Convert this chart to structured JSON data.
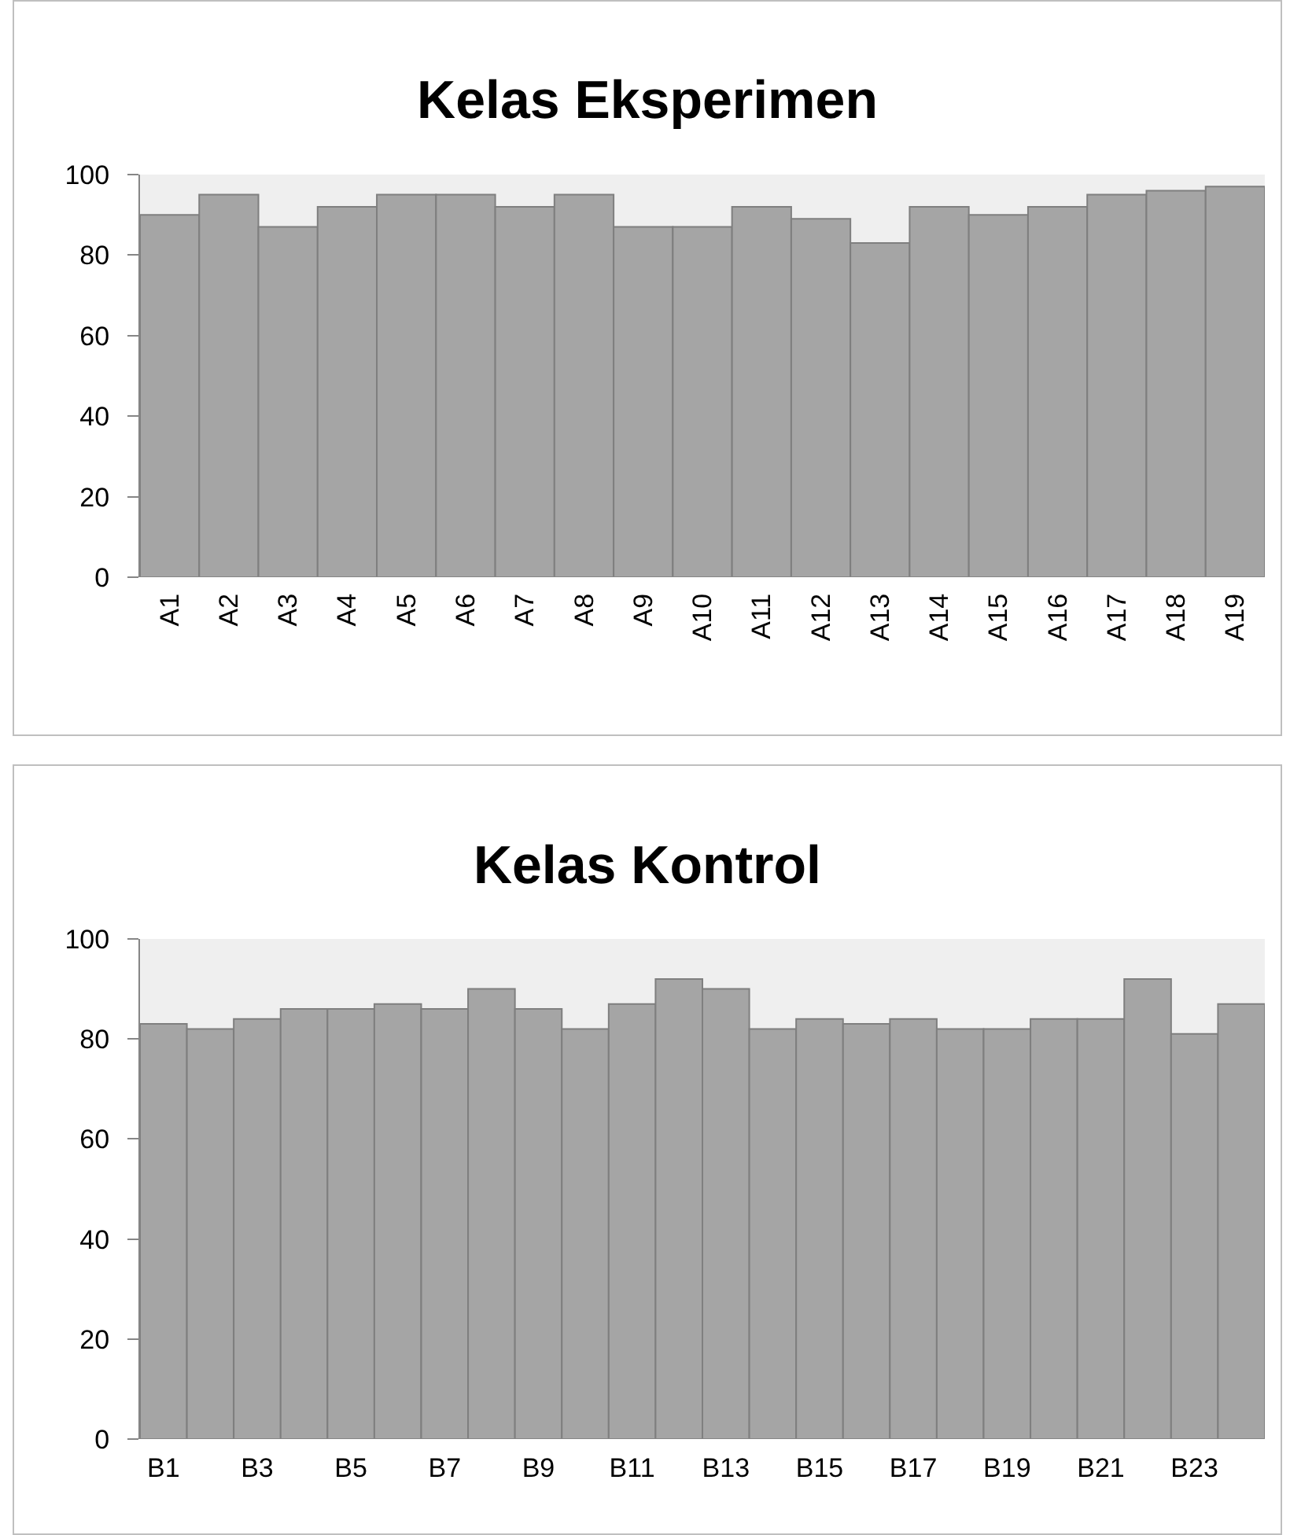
{
  "chart_data": [
    {
      "type": "bar",
      "title": "Kelas Eksperimen",
      "categories": [
        "A1",
        "A2",
        "A3",
        "A4",
        "A5",
        "A6",
        "A7",
        "A8",
        "A9",
        "A10",
        "A11",
        "A12",
        "A13",
        "A14",
        "A15",
        "A16",
        "A17",
        "A18",
        "A19"
      ],
      "values": [
        90,
        95,
        87,
        92,
        95,
        95,
        92,
        95,
        87,
        87,
        92,
        89,
        83,
        92,
        90,
        92,
        95,
        96,
        97
      ],
      "color": "#a5a5a5",
      "ylim": [
        0,
        100
      ],
      "yticks": [
        0,
        20,
        40,
        60,
        80,
        100
      ]
    },
    {
      "type": "bar",
      "title": "Kelas Kontrol",
      "categories": [
        "B1",
        null,
        "B3",
        null,
        "B5",
        null,
        "B7",
        null,
        "B9",
        null,
        "B11",
        null,
        "B13",
        null,
        "B15",
        null,
        "B17",
        null,
        "B19",
        null,
        "B21",
        null,
        "B23",
        null
      ],
      "values": [
        83,
        82,
        84,
        86,
        86,
        87,
        86,
        90,
        86,
        82,
        87,
        92,
        90,
        82,
        84,
        83,
        84,
        82,
        82,
        84,
        84,
        92,
        81,
        87
      ],
      "color": "#a5a5a5",
      "ylim": [
        0,
        100
      ],
      "yticks": [
        0,
        20,
        40,
        60,
        80,
        100
      ]
    }
  ]
}
